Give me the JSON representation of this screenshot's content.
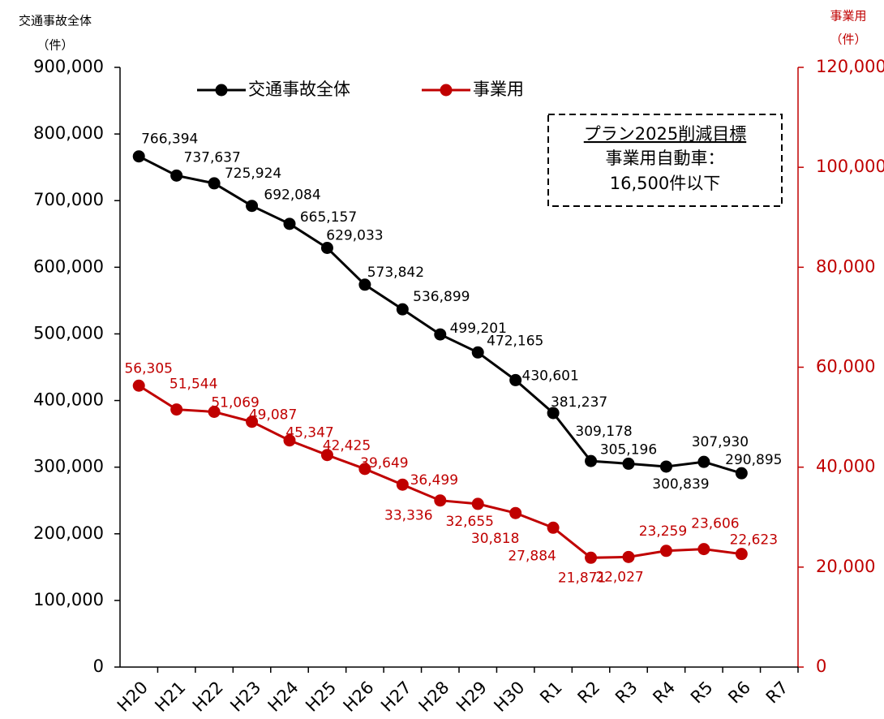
{
  "chart_data": {
    "type": "line",
    "y_axis_title": "交通事故全体",
    "y_axis_unit": "（件）",
    "y2_axis_title": "事業用",
    "y2_axis_unit": "（件）",
    "annotation": {
      "title": "プラン2025削減目標",
      "lines": [
        "事業用自動車：",
        "16,500件以下"
      ]
    },
    "categories": [
      "H20",
      "H21",
      "H22",
      "H23",
      "H24",
      "H25",
      "H26",
      "H27",
      "H28",
      "H29",
      "H30",
      "R1",
      "R2",
      "R3",
      "R4",
      "R5",
      "R6",
      "R7"
    ],
    "series": [
      {
        "name": "交通事故全体",
        "color": "#000000",
        "axis": "y",
        "values": [
          766394,
          737637,
          725924,
          692084,
          665157,
          629033,
          573842,
          536899,
          499201,
          472165,
          430601,
          381237,
          309178,
          305196,
          300839,
          307930,
          290895,
          null
        ],
        "value_labels": [
          "766,394",
          "737,637",
          "725,924",
          "692,084",
          "665,157",
          "629,033",
          "573,842",
          "536,899",
          "499,201",
          "472,165",
          "430,601",
          "381,237",
          "309,178",
          "305,196",
          "300,839",
          "307,930",
          "290,895",
          null
        ]
      },
      {
        "name": "事業用",
        "color": "#c00000",
        "axis": "y2",
        "values": [
          56305,
          51544,
          51069,
          49087,
          45347,
          42425,
          39649,
          36499,
          33336,
          32655,
          30818,
          27884,
          21871,
          22027,
          23259,
          23606,
          22623,
          null
        ],
        "value_labels": [
          "56,305",
          "51,544",
          "51,069",
          "49,087",
          "45,347",
          "42,425",
          "39,649",
          "36,499",
          "33,336",
          "32,655",
          "30,818",
          "27,884",
          "21,871",
          "22,027",
          "23,259",
          "23,606",
          "22,623",
          null
        ]
      }
    ],
    "ylim": [
      0,
      900000
    ],
    "yticks": [
      0,
      {
        "value": 100000,
        "label": "100,000"
      },
      {
        "value": 200000,
        "label": "200,000"
      },
      {
        "value": 300000,
        "label": "300,000"
      },
      {
        "value": 400000,
        "label": "400,000"
      },
      {
        "value": 500000,
        "label": "500,000"
      },
      {
        "value": 600000,
        "label": "600,000"
      },
      {
        "value": 700000,
        "label": "700,000"
      },
      {
        "value": 800000,
        "label": "800,000"
      },
      {
        "value": 900000,
        "label": "900,000"
      }
    ],
    "y2lim": [
      0,
      120000
    ],
    "y2ticks": [
      0,
      {
        "value": 20000,
        "label": "20,000"
      },
      {
        "value": 40000,
        "label": "40,000"
      },
      {
        "value": 60000,
        "label": "60,000"
      },
      {
        "value": 80000,
        "label": "80,000"
      },
      {
        "value": 100000,
        "label": "100,000"
      },
      {
        "value": 120000,
        "label": "120,000"
      }
    ],
    "legend": "top",
    "grid": false
  }
}
